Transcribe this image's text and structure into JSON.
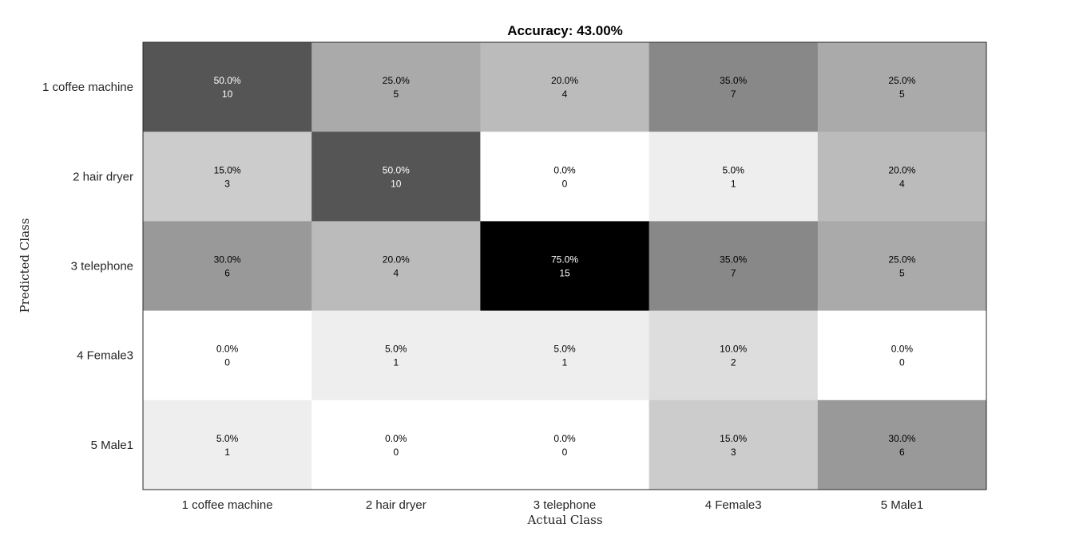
{
  "chart_data": {
    "type": "heatmap",
    "title": "Accuracy: 43.00%",
    "xlabel": "Actual Class",
    "ylabel": "Predicted Class",
    "x_categories": [
      "1 coffee machine",
      "2 hair dryer",
      "3 telephone",
      "4 Female3",
      "5 Male1"
    ],
    "y_categories": [
      "1 coffee machine",
      "2 hair dryer",
      "3 telephone",
      "4 Female3",
      "5 Male1"
    ],
    "percent": [
      [
        50.0,
        25.0,
        20.0,
        35.0,
        25.0
      ],
      [
        15.0,
        50.0,
        0.0,
        5.0,
        20.0
      ],
      [
        30.0,
        20.0,
        75.0,
        35.0,
        25.0
      ],
      [
        0.0,
        5.0,
        5.0,
        10.0,
        0.0
      ],
      [
        5.0,
        0.0,
        0.0,
        15.0,
        30.0
      ]
    ],
    "counts": [
      [
        10,
        5,
        4,
        7,
        5
      ],
      [
        3,
        10,
        0,
        1,
        4
      ],
      [
        6,
        4,
        15,
        7,
        5
      ],
      [
        0,
        1,
        1,
        2,
        0
      ],
      [
        1,
        0,
        0,
        3,
        6
      ]
    ],
    "colormap": "gray-reversed",
    "value_range_percent": [
      0,
      75
    ]
  }
}
